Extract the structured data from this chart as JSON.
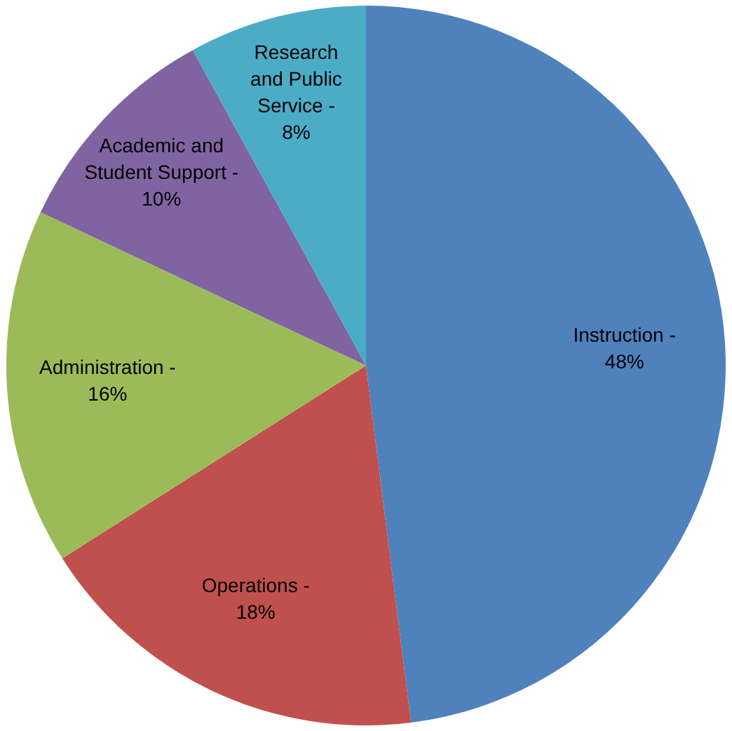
{
  "chart_data": {
    "type": "pie",
    "categories": [
      "Instruction -",
      "Operations -",
      "Administration -",
      "Academic and Student Support -",
      "Research and Public Service -"
    ],
    "values": [
      48,
      18,
      16,
      10,
      8
    ],
    "colors": [
      "#4f81bd",
      "#c0504d",
      "#9bbb59",
      "#8064a2",
      "#4bacc6"
    ],
    "value_labels": [
      "48%",
      "18%",
      "16%",
      "10%",
      "8%"
    ],
    "legend": false
  }
}
